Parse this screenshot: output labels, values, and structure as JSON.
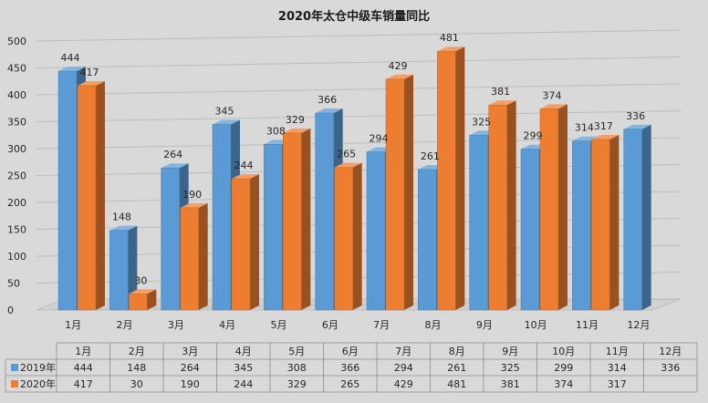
{
  "chart_data": {
    "type": "bar",
    "title": "2020年太仓中级车销量同比",
    "categories": [
      "1月",
      "2月",
      "3月",
      "4月",
      "5月",
      "6月",
      "7月",
      "8月",
      "9月",
      "10月",
      "11月",
      "12月"
    ],
    "series": [
      {
        "name": "2019年",
        "color": "#5b9bd5",
        "values": [
          444,
          148,
          264,
          345,
          308,
          366,
          294,
          261,
          325,
          299,
          314,
          336
        ]
      },
      {
        "name": "2020年",
        "color": "#ed7d31",
        "values": [
          417,
          30,
          190,
          244,
          329,
          265,
          429,
          481,
          381,
          374,
          317,
          null
        ]
      }
    ],
    "ylim": [
      0,
      500
    ],
    "yticks": [
      0,
      50,
      100,
      150,
      200,
      250,
      300,
      350,
      400,
      450,
      500
    ],
    "grid": true,
    "legend": "data-table",
    "data_table": true
  }
}
